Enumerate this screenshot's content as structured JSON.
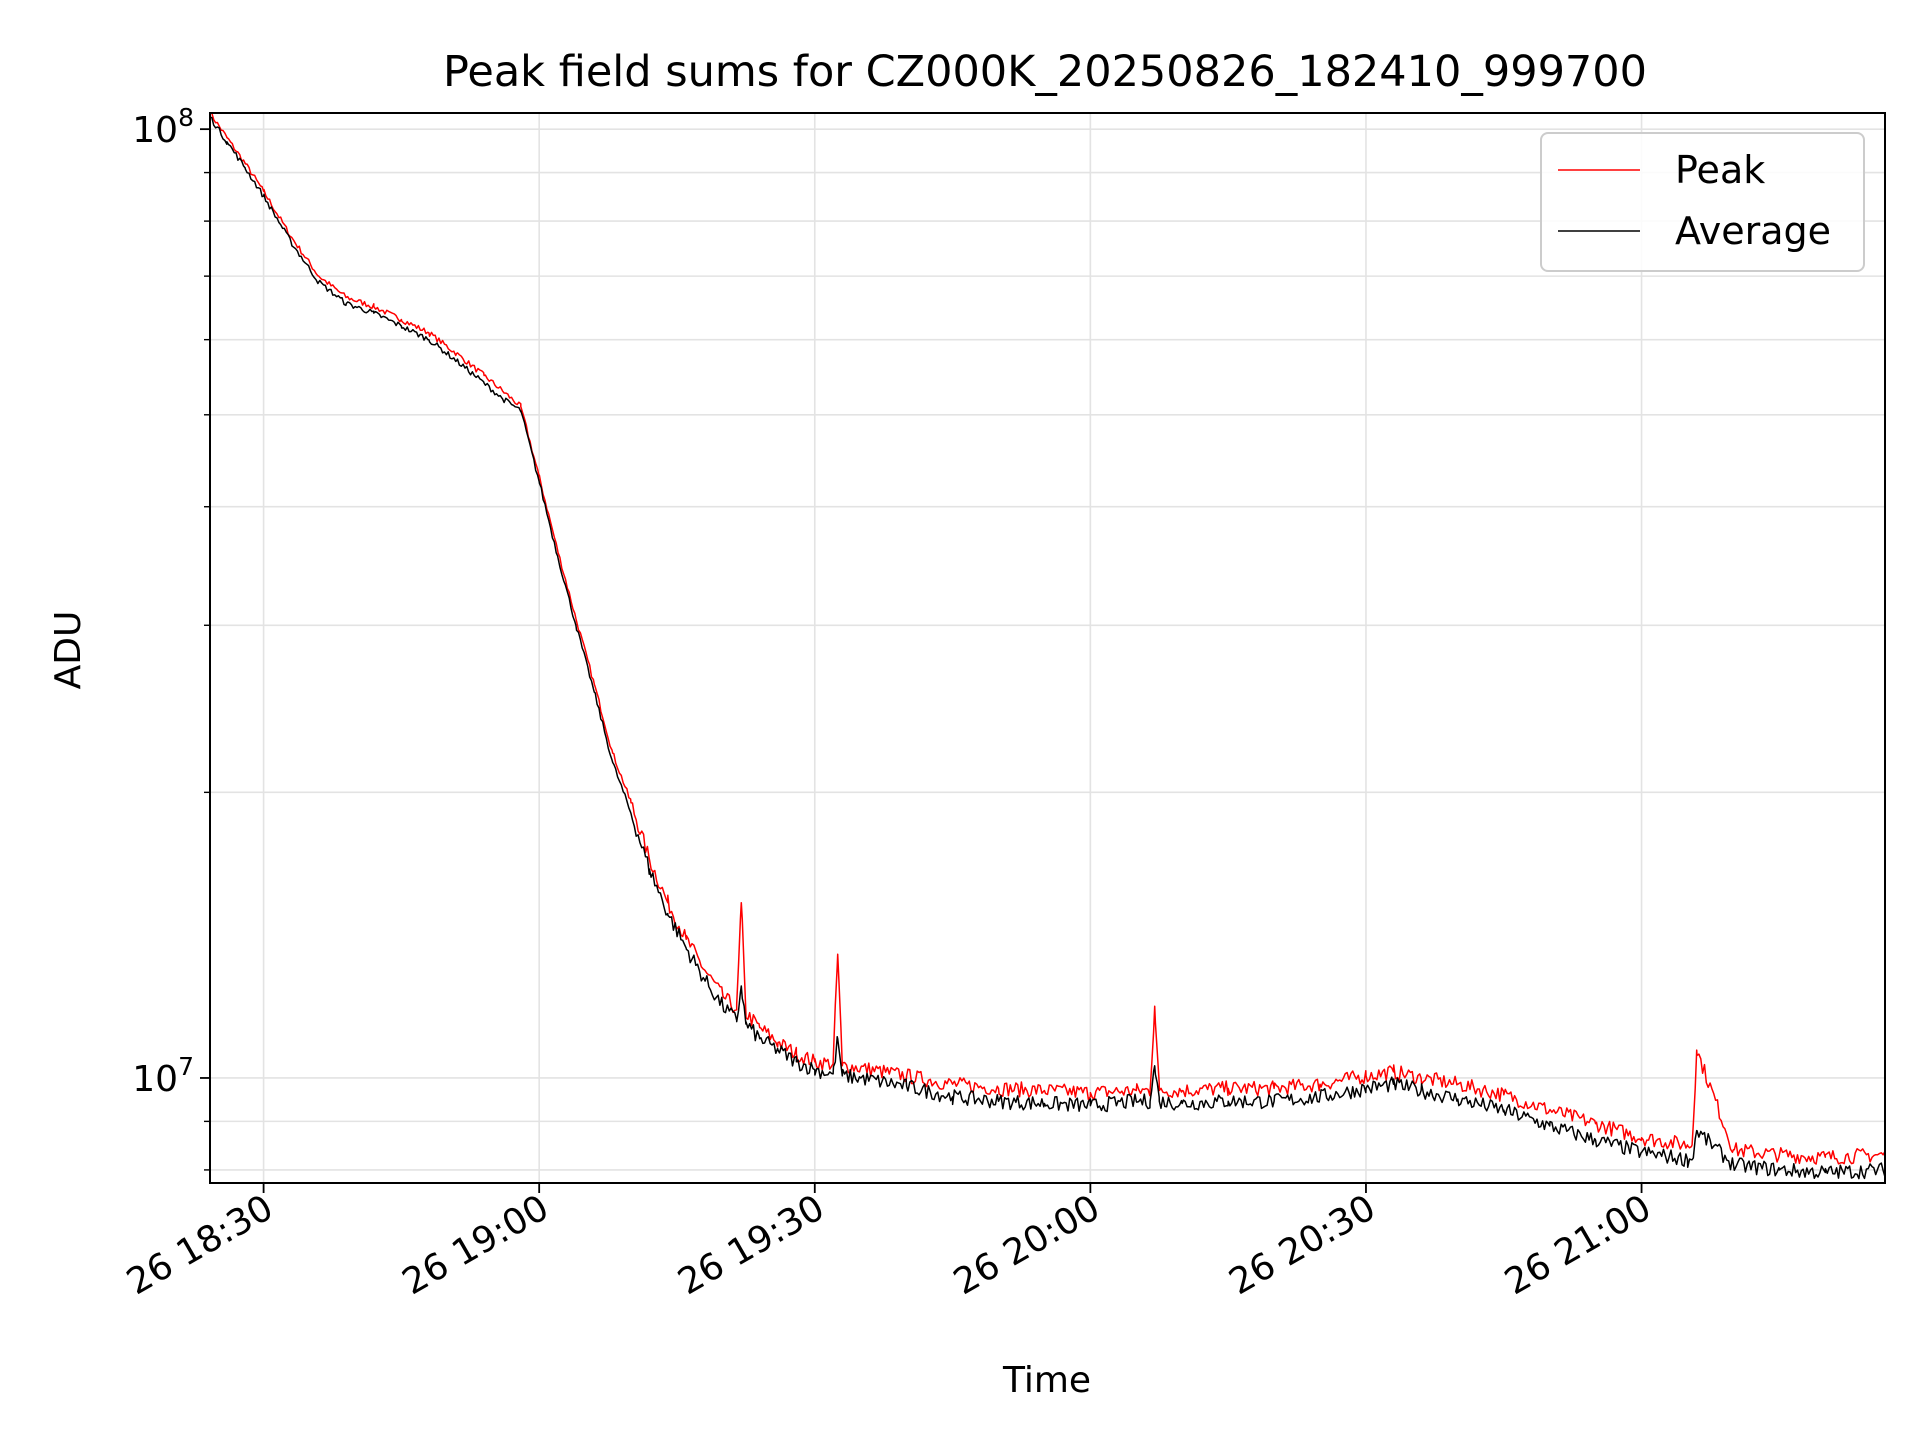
{
  "chart_data": {
    "type": "line",
    "title": "Peak field sums for CZ000K_20250826_182410_999700",
    "xlabel": "Time",
    "ylabel": "ADU",
    "x_scale": "time",
    "y_scale": "log",
    "xlim": [
      "2025-08-26T18:24:10",
      "2025-08-26T21:26:30"
    ],
    "ylim": [
      7750000,
      104000000
    ],
    "x_ticks": [
      {
        "time": "2025-08-26T18:30:00",
        "label": "26 18:30"
      },
      {
        "time": "2025-08-26T19:00:00",
        "label": "26 19:00"
      },
      {
        "time": "2025-08-26T19:30:00",
        "label": "26 19:30"
      },
      {
        "time": "2025-08-26T20:00:00",
        "label": "26 20:00"
      },
      {
        "time": "2025-08-26T20:30:00",
        "label": "26 20:30"
      },
      {
        "time": "2025-08-26T21:00:00",
        "label": "26 21:00"
      }
    ],
    "y_major_ticks": [
      {
        "value": 10000000,
        "base": "10",
        "exp": "7"
      },
      {
        "value": 100000000,
        "base": "10",
        "exp": "8"
      }
    ],
    "y_minor_ticks": [
      8000000,
      9000000,
      20000000,
      30000000,
      40000000,
      50000000,
      60000000,
      70000000,
      80000000,
      90000000
    ],
    "grid": true,
    "legend_position": "top-right",
    "series": [
      {
        "name": "Peak",
        "color": "#ff0000",
        "x": [
          "2025-08-26T18:24:10",
          "2025-08-26T18:26:00",
          "2025-08-26T18:28:00",
          "2025-08-26T18:30:00",
          "2025-08-26T18:33:00",
          "2025-08-26T18:36:00",
          "2025-08-26T18:39:00",
          "2025-08-26T18:42:00",
          "2025-08-26T18:45:00",
          "2025-08-26T18:48:00",
          "2025-08-26T18:51:00",
          "2025-08-26T18:54:00",
          "2025-08-26T18:56:00",
          "2025-08-26T18:58:00",
          "2025-08-26T19:00:00",
          "2025-08-26T19:02:00",
          "2025-08-26T19:04:00",
          "2025-08-26T19:06:00",
          "2025-08-26T19:08:00",
          "2025-08-26T19:10:00",
          "2025-08-26T19:12:00",
          "2025-08-26T19:14:00",
          "2025-08-26T19:16:00",
          "2025-08-26T19:18:00",
          "2025-08-26T19:20:00",
          "2025-08-26T19:21:30",
          "2025-08-26T19:22:00",
          "2025-08-26T19:22:30",
          "2025-08-26T19:24:00",
          "2025-08-26T19:26:00",
          "2025-08-26T19:28:00",
          "2025-08-26T19:30:00",
          "2025-08-26T19:32:00",
          "2025-08-26T19:32:30",
          "2025-08-26T19:33:00",
          "2025-08-26T19:35:00",
          "2025-08-26T19:40:00",
          "2025-08-26T19:45:00",
          "2025-08-26T19:50:00",
          "2025-08-26T19:55:00",
          "2025-08-26T20:00:00",
          "2025-08-26T20:05:00",
          "2025-08-26T20:06:30",
          "2025-08-26T20:07:00",
          "2025-08-26T20:07:30",
          "2025-08-26T20:10:00",
          "2025-08-26T20:15:00",
          "2025-08-26T20:20:00",
          "2025-08-26T20:25:00",
          "2025-08-26T20:30:00",
          "2025-08-26T20:33:00",
          "2025-08-26T20:36:00",
          "2025-08-26T20:40:00",
          "2025-08-26T20:45:00",
          "2025-08-26T20:50:00",
          "2025-08-26T20:55:00",
          "2025-08-26T21:00:00",
          "2025-08-26T21:05:00",
          "2025-08-26T21:05:30",
          "2025-08-26T21:06:00",
          "2025-08-26T21:10:00",
          "2025-08-26T21:15:00",
          "2025-08-26T21:20:00",
          "2025-08-26T21:26:30"
        ],
        "values": [
          104000000,
          98000000,
          92000000,
          86000000,
          77000000,
          70000000,
          66500000,
          65000000,
          63000000,
          61000000,
          58000000,
          55000000,
          53000000,
          51000000,
          43000000,
          36000000,
          30500000,
          26000000,
          22000000,
          19500000,
          17000000,
          15300000,
          14000000,
          13000000,
          12200000,
          11800000,
          15300000,
          11700000,
          11300000,
          10900000,
          10600000,
          10400000,
          10350000,
          13500000,
          10300000,
          10250000,
          10050000,
          9850000,
          9750000,
          9700000,
          9650000,
          9700000,
          9700000,
          11900000,
          9700000,
          9700000,
          9750000,
          9750000,
          9850000,
          10050000,
          10150000,
          10000000,
          9850000,
          9600000,
          9250000,
          8950000,
          8650000,
          8500000,
          8500000,
          10700000,
          8400000,
          8300000,
          8250000,
          8300000
        ]
      },
      {
        "name": "Average",
        "color": "#000000",
        "x": [
          "2025-08-26T18:24:10",
          "2025-08-26T18:26:00",
          "2025-08-26T18:28:00",
          "2025-08-26T18:30:00",
          "2025-08-26T18:33:00",
          "2025-08-26T18:36:00",
          "2025-08-26T18:39:00",
          "2025-08-26T18:42:00",
          "2025-08-26T18:45:00",
          "2025-08-26T18:48:00",
          "2025-08-26T18:51:00",
          "2025-08-26T18:54:00",
          "2025-08-26T18:56:00",
          "2025-08-26T18:58:00",
          "2025-08-26T19:00:00",
          "2025-08-26T19:02:00",
          "2025-08-26T19:04:00",
          "2025-08-26T19:06:00",
          "2025-08-26T19:08:00",
          "2025-08-26T19:10:00",
          "2025-08-26T19:12:00",
          "2025-08-26T19:14:00",
          "2025-08-26T19:16:00",
          "2025-08-26T19:18:00",
          "2025-08-26T19:20:00",
          "2025-08-26T19:21:30",
          "2025-08-26T19:22:00",
          "2025-08-26T19:22:30",
          "2025-08-26T19:24:00",
          "2025-08-26T19:26:00",
          "2025-08-26T19:28:00",
          "2025-08-26T19:30:00",
          "2025-08-26T19:32:00",
          "2025-08-26T19:32:30",
          "2025-08-26T19:33:00",
          "2025-08-26T19:35:00",
          "2025-08-26T19:40:00",
          "2025-08-26T19:45:00",
          "2025-08-26T19:50:00",
          "2025-08-26T19:55:00",
          "2025-08-26T20:00:00",
          "2025-08-26T20:05:00",
          "2025-08-26T20:06:30",
          "2025-08-26T20:07:00",
          "2025-08-26T20:07:30",
          "2025-08-26T20:10:00",
          "2025-08-26T20:15:00",
          "2025-08-26T20:20:00",
          "2025-08-26T20:25:00",
          "2025-08-26T20:30:00",
          "2025-08-26T20:33:00",
          "2025-08-26T20:36:00",
          "2025-08-26T20:40:00",
          "2025-08-26T20:45:00",
          "2025-08-26T20:50:00",
          "2025-08-26T20:55:00",
          "2025-08-26T21:00:00",
          "2025-08-26T21:05:00",
          "2025-08-26T21:05:30",
          "2025-08-26T21:06:00",
          "2025-08-26T21:10:00",
          "2025-08-26T21:15:00",
          "2025-08-26T21:20:00",
          "2025-08-26T21:26:30"
        ],
        "values": [
          103000000,
          97000000,
          91000000,
          85000000,
          76000000,
          69000000,
          65500000,
          64000000,
          62000000,
          60000000,
          57000000,
          54000000,
          52000000,
          50500000,
          42500000,
          35500000,
          30000000,
          25500000,
          21500000,
          19000000,
          16600000,
          14900000,
          13700000,
          12700000,
          11900000,
          11500000,
          12500000,
          11400000,
          11000000,
          10700000,
          10400000,
          10200000,
          10100000,
          11000000,
          10050000,
          10000000,
          9800000,
          9550000,
          9450000,
          9400000,
          9350000,
          9450000,
          9450000,
          10300000,
          9450000,
          9400000,
          9450000,
          9450000,
          9550000,
          9750000,
          9850000,
          9700000,
          9500000,
          9250000,
          8900000,
          8600000,
          8350000,
          8200000,
          8200000,
          8800000,
          8100000,
          8000000,
          7950000,
          8000000
        ]
      }
    ]
  }
}
